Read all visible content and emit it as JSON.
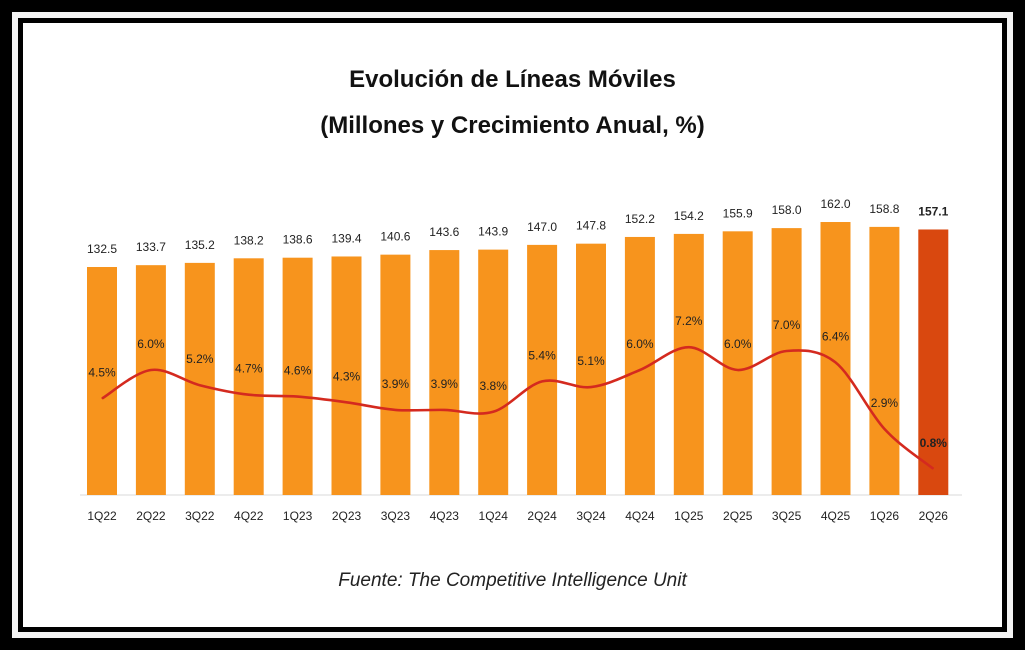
{
  "chart_data": {
    "type": "bar",
    "title": "Evolución de Líneas Móviles",
    "subtitle": "(Millones y Crecimiento Anual, %)",
    "source": "Fuente: The Competitive Intelligence Unit",
    "categories": [
      "1Q22",
      "2Q22",
      "3Q22",
      "4Q22",
      "1Q23",
      "2Q23",
      "3Q23",
      "4Q23",
      "1Q24",
      "2Q24",
      "3Q24",
      "4Q24",
      "1Q25",
      "2Q25",
      "3Q25",
      "4Q25",
      "1Q26",
      "2Q26"
    ],
    "series": [
      {
        "type": "bar",
        "values": [
          132.5,
          133.7,
          135.2,
          138.2,
          138.6,
          139.4,
          140.6,
          143.6,
          143.9,
          147.0,
          147.8,
          152.2,
          154.2,
          155.9,
          158.0,
          162.0,
          158.8,
          157.1
        ],
        "labels": [
          "132.5",
          "133.7",
          "135.2",
          "138.2",
          "138.6",
          "139.4",
          "140.6",
          "143.6",
          "143.9",
          "147.0",
          "147.8",
          "152.2",
          "154.2",
          "155.9",
          "158.0",
          "162.0",
          "158.8",
          "157.1"
        ],
        "color": "#f7941d",
        "highlight_color": "#d9480f",
        "highlight_index": 17
      },
      {
        "type": "line",
        "values": [
          4.5,
          6.0,
          5.2,
          4.7,
          4.6,
          4.3,
          3.9,
          3.9,
          3.8,
          5.4,
          5.1,
          6.0,
          7.2,
          6.0,
          7.0,
          6.4,
          2.9,
          0.8
        ],
        "labels": [
          "4.5%",
          "6.0%",
          "5.2%",
          "4.7%",
          "4.6%",
          "4.3%",
          "3.9%",
          "3.9%",
          "3.8%",
          "5.4%",
          "5.1%",
          "6.0%",
          "7.2%",
          "6.0%",
          "7.0%",
          "6.4%",
          "2.9%",
          "0.8%"
        ],
        "color": "#d42a1f"
      }
    ]
  }
}
